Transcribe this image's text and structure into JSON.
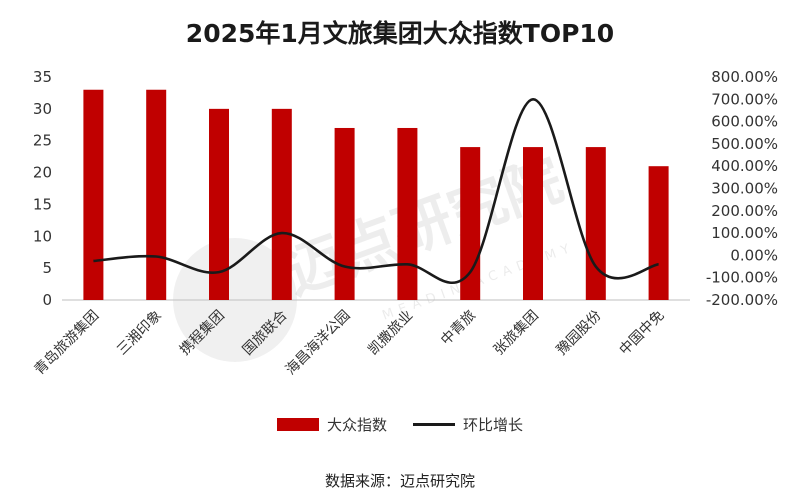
{
  "source_note": "数据来源：迈点研究院",
  "watermark": {
    "text": "迈点研究院",
    "subtext": "MEADIN ACADEMY"
  },
  "colors": {
    "bar": "#c00000",
    "line": "#1a1a1a",
    "axis": "#bfbfbf"
  },
  "chart_data": {
    "type": "bar",
    "title": "2025年1月文旅集团大众指数TOP10",
    "categories": [
      "青岛旅游集团",
      "三湘印象",
      "携程集团",
      "国旅联合",
      "海昌海洋公园",
      "凯撒旅业",
      "中青旅",
      "张旅集团",
      "豫园股份",
      "中国中免"
    ],
    "series": [
      {
        "name": "大众指数",
        "type": "bar",
        "axis": "left",
        "values": [
          33,
          33,
          30,
          30,
          27,
          27,
          24,
          24,
          24,
          21
        ]
      },
      {
        "name": "环比增长",
        "type": "line",
        "axis": "right",
        "values": [
          -25,
          -5,
          -75,
          100,
          -50,
          -40,
          -75,
          700,
          -50,
          -40
        ]
      }
    ],
    "y_left": {
      "min": 0,
      "max": 35,
      "ticks": [
        "0",
        "5",
        "10",
        "15",
        "20",
        "25",
        "30",
        "35"
      ]
    },
    "y_right": {
      "min": -200,
      "max": 800,
      "ticks": [
        "-200.00%",
        "-100.00%",
        "0.00%",
        "100.00%",
        "200.00%",
        "300.00%",
        "400.00%",
        "500.00%",
        "600.00%",
        "700.00%",
        "800.00%"
      ]
    },
    "legend_position": "bottom",
    "grid": false
  }
}
